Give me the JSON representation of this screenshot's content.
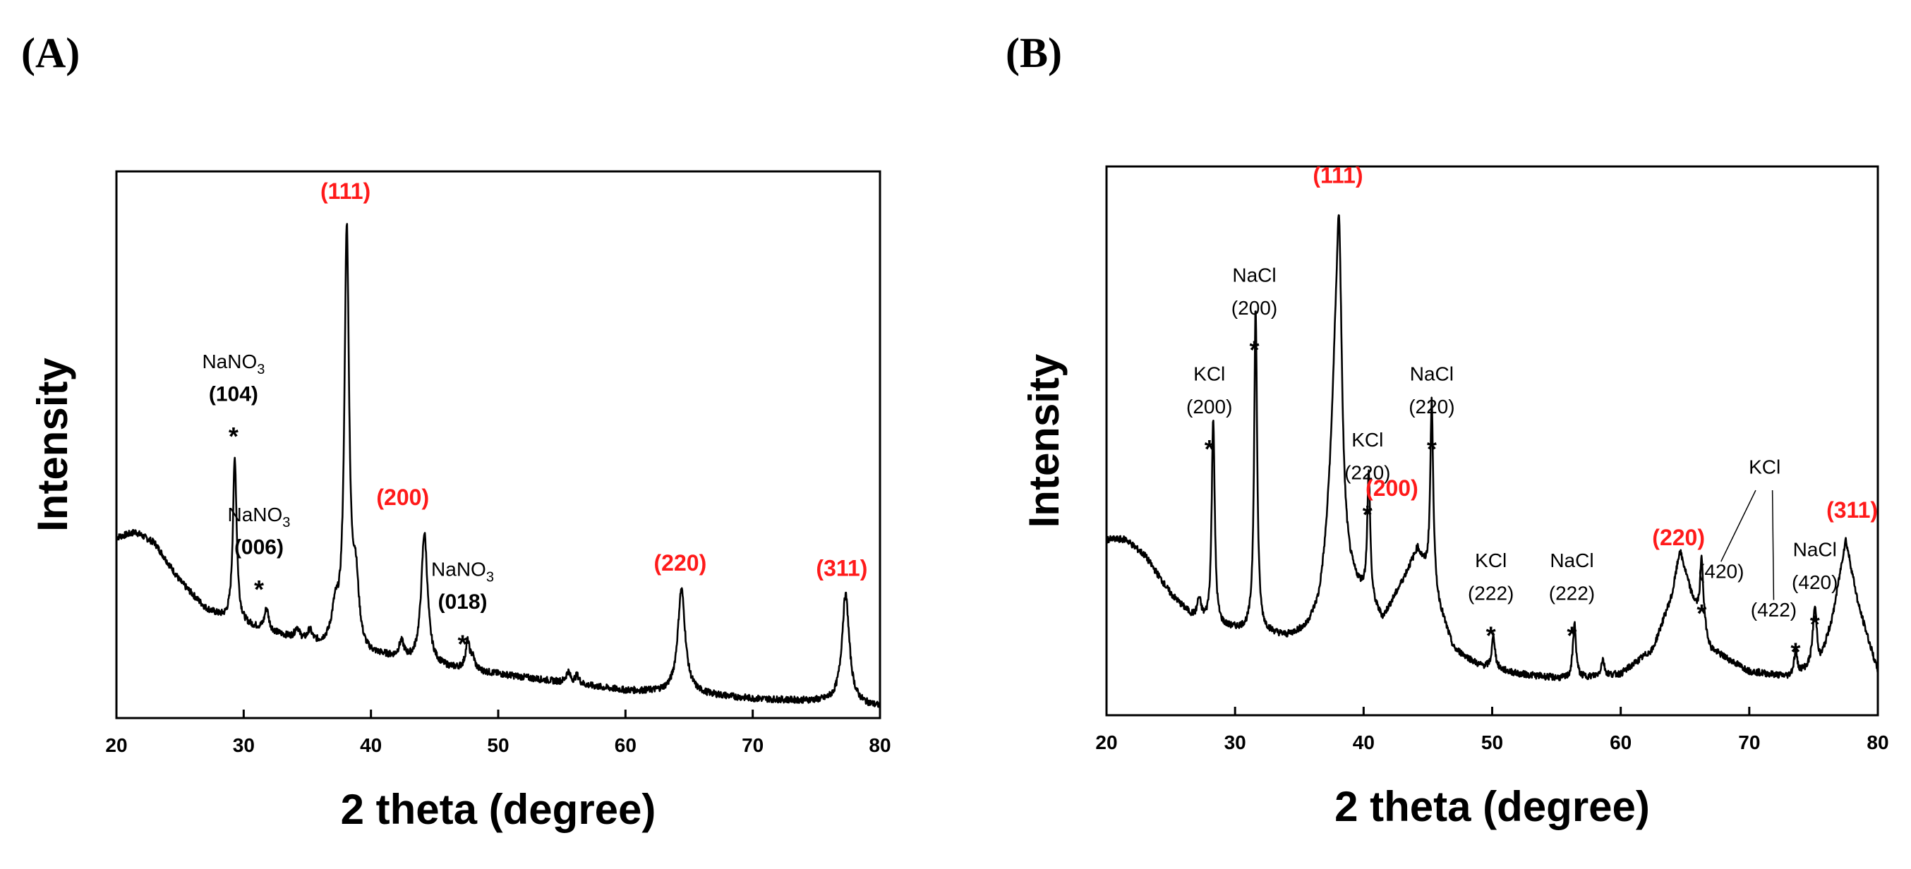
{
  "colors": {
    "red_label": "#ff1a1a",
    "black": "#000000"
  },
  "chart_data": [
    {
      "type": "line",
      "panel_label": "(A)",
      "xlabel": "2 theta (degree)",
      "ylabel": "Intensity",
      "xlim": [
        20,
        80
      ],
      "ylim": [
        0,
        100
      ],
      "xticks": [
        "20",
        "30",
        "40",
        "50",
        "60",
        "70",
        "80"
      ],
      "baseline": [
        [
          20,
          33
        ],
        [
          21.5,
          34
        ],
        [
          23,
          32
        ],
        [
          25,
          25
        ],
        [
          27,
          20
        ],
        [
          28.5,
          18
        ],
        [
          30,
          17
        ],
        [
          33,
          15
        ],
        [
          36,
          13
        ],
        [
          38,
          12
        ],
        [
          39.5,
          11
        ],
        [
          41,
          11
        ],
        [
          43,
          10
        ],
        [
          46,
          9
        ],
        [
          50,
          8
        ],
        [
          55,
          6.5
        ],
        [
          60,
          5
        ],
        [
          65,
          4.5
        ],
        [
          70,
          3.5
        ],
        [
          75,
          3
        ],
        [
          80,
          2
        ]
      ],
      "peaks": [
        {
          "x": 29.3,
          "h": 30,
          "w": 0.18
        },
        {
          "x": 31.8,
          "h": 4,
          "w": 0.2
        },
        {
          "x": 34.2,
          "h": 2,
          "w": 0.2
        },
        {
          "x": 35.2,
          "h": 2,
          "w": 0.2
        },
        {
          "x": 37.2,
          "h": 6,
          "w": 0.35
        },
        {
          "x": 38.1,
          "h": 76,
          "w": 0.22
        },
        {
          "x": 38.8,
          "h": 12,
          "w": 0.3
        },
        {
          "x": 42.4,
          "h": 3,
          "w": 0.25
        },
        {
          "x": 44.2,
          "h": 24,
          "w": 0.3
        },
        {
          "x": 47.6,
          "h": 5,
          "w": 0.2
        },
        {
          "x": 48,
          "h": 2,
          "w": 0.2
        },
        {
          "x": 55.5,
          "h": 2,
          "w": 0.2
        },
        {
          "x": 56.2,
          "h": 1.5,
          "w": 0.2
        },
        {
          "x": 64.4,
          "h": 19,
          "w": 0.35
        },
        {
          "x": 77.3,
          "h": 20,
          "w": 0.35
        }
      ],
      "annotations": [
        {
          "text": "(111)",
          "color": "red",
          "x": 38.0,
          "y": 95
        },
        {
          "text": "(200)",
          "color": "red",
          "x": 42.5,
          "y": 39
        },
        {
          "text": "(220)",
          "color": "red",
          "x": 64.3,
          "y": 27
        },
        {
          "text": "(311)",
          "color": "red",
          "x": 77.0,
          "y": 26
        },
        {
          "formula_base": "NaNO",
          "formula_sub": "3",
          "hkl": "(104)",
          "x": 29.2,
          "y_formula": 64,
          "y_hkl": 58,
          "y_star": 52
        },
        {
          "formula_base": "NaNO",
          "formula_sub": "3",
          "hkl": "(006)",
          "x": 31.2,
          "y_formula": 36,
          "y_hkl": 30,
          "y_star": 24
        },
        {
          "formula_base": "NaNO",
          "formula_sub": "3",
          "hkl": "(018)",
          "x": 47.2,
          "y_formula": 26,
          "y_hkl": 20,
          "y_star": 14
        }
      ]
    },
    {
      "type": "line",
      "panel_label": "(B)",
      "xlabel": "2 theta (degree)",
      "ylabel": "Intensity",
      "xlim": [
        20,
        80
      ],
      "ylim": [
        0,
        100
      ],
      "xticks": [
        "20",
        "30",
        "40",
        "50",
        "60",
        "70",
        "80"
      ],
      "baseline": [
        [
          20,
          32
        ],
        [
          21.5,
          32
        ],
        [
          23,
          29
        ],
        [
          25,
          22
        ],
        [
          27,
          17
        ],
        [
          28.5,
          16
        ],
        [
          30,
          15.5
        ],
        [
          32,
          15
        ],
        [
          34,
          14
        ],
        [
          35.5,
          15
        ],
        [
          36.5,
          18
        ],
        [
          37.3,
          26
        ],
        [
          40,
          21
        ],
        [
          41.5,
          17
        ],
        [
          43,
          24
        ],
        [
          44.2,
          30
        ],
        [
          45.5,
          22
        ],
        [
          47,
          12
        ],
        [
          49,
          9
        ],
        [
          52,
          7.5
        ],
        [
          56,
          6.5
        ],
        [
          60,
          7.5
        ],
        [
          62.5,
          12
        ],
        [
          64,
          22
        ],
        [
          64.6,
          30
        ],
        [
          65.5,
          22
        ],
        [
          67,
          12
        ],
        [
          70,
          8
        ],
        [
          73,
          7
        ],
        [
          75.5,
          9
        ],
        [
          76.5,
          18
        ],
        [
          77.5,
          32
        ],
        [
          78.5,
          20
        ],
        [
          80,
          8
        ]
      ],
      "peaks": [
        {
          "x": 27.2,
          "h": 4,
          "w": 0.2
        },
        {
          "x": 28.3,
          "h": 38,
          "w": 0.14
        },
        {
          "x": 31.6,
          "h": 59,
          "w": 0.14
        },
        {
          "x": 37.8,
          "h": 30,
          "w": 0.45
        },
        {
          "x": 38.1,
          "h": 45,
          "w": 0.25
        },
        {
          "x": 40.4,
          "h": 23,
          "w": 0.14
        },
        {
          "x": 45.3,
          "h": 34,
          "w": 0.14
        },
        {
          "x": 50.1,
          "h": 6,
          "w": 0.15
        },
        {
          "x": 56.4,
          "h": 10,
          "w": 0.15
        },
        {
          "x": 58.6,
          "h": 3,
          "w": 0.15
        },
        {
          "x": 66.3,
          "h": 12,
          "w": 0.15
        },
        {
          "x": 73.6,
          "h": 4,
          "w": 0.15
        },
        {
          "x": 75.1,
          "h": 11,
          "w": 0.2
        }
      ],
      "annotations": [
        {
          "text": "(111)",
          "color": "red",
          "x": 38.0,
          "y": 97
        },
        {
          "text": "(200)",
          "color": "red",
          "x": 42.2,
          "y": 40
        },
        {
          "text": "(220)",
          "color": "red",
          "x": 64.5,
          "y": 31
        },
        {
          "text": "(311)",
          "color": "red",
          "x": 78.0,
          "y": 36
        },
        {
          "formula_base": "NaCl",
          "hkl": "(200)",
          "x": 31.5,
          "y_formula": 79,
          "y_hkl": 73,
          "y_star": 67
        },
        {
          "formula_base": "KCl",
          "hkl": "(200)",
          "x": 28.0,
          "y_formula": 61,
          "y_hkl": 55,
          "y_star": 49
        },
        {
          "formula_base": "KCl",
          "hkl": "(220)",
          "x": 40.3,
          "y_formula": 49,
          "y_hkl": 43,
          "y_star": 37
        },
        {
          "formula_base": "NaCl",
          "hkl": "(220)",
          "x": 45.3,
          "y_formula": 61,
          "y_hkl": 55,
          "y_star": 49
        },
        {
          "formula_base": "KCl",
          "hkl": "(222)",
          "x": 49.9,
          "y_formula": 27,
          "y_hkl": 21,
          "y_star": 15
        },
        {
          "formula_base": "NaCl",
          "hkl": "(222)",
          "x": 56.2,
          "y_formula": 27,
          "y_hkl": 21,
          "y_star": 15
        },
        {
          "formula_base": "NaCl",
          "hkl": "(420)",
          "x": 75.1,
          "y_formula": 29,
          "y_hkl": 23,
          "y_star": 17
        },
        {
          "formula_base": "KCl",
          "hkl": "(420)",
          "x": 67.8,
          "x_star": 66.3,
          "y_hkl": 25,
          "y_star": 19
        },
        {
          "hkl": "(422)",
          "x": 71.9,
          "x_star": 73.6,
          "y_hkl": 18,
          "y_star": 12
        },
        {
          "text": "KCl",
          "color": "black",
          "x": 71.2,
          "y": 44,
          "leaders": [
            [
              70.5,
              41,
              67.8,
              28
            ],
            [
              71.8,
              41,
              71.9,
              21
            ]
          ]
        }
      ]
    }
  ]
}
